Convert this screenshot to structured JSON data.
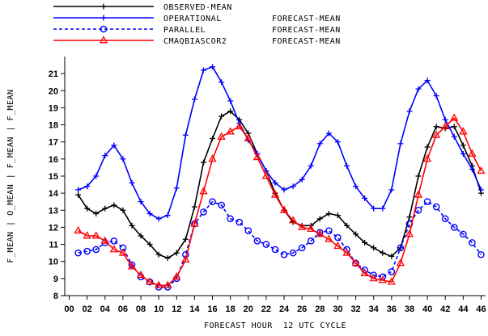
{
  "chart_data": {
    "type": "line",
    "xlabel": "FORECAST HOUR  12 UTC CYCLE",
    "ylabel": "F_MEAN | O_MEAN | F_MEAN | F_MEAN",
    "xlim": [
      -0.5,
      46.5
    ],
    "ylim": [
      8,
      22
    ],
    "grid": false,
    "legend_position": "top-left",
    "x_ticks": [
      "00",
      "02",
      "04",
      "06",
      "08",
      "10",
      "12",
      "14",
      "16",
      "18",
      "20",
      "22",
      "24",
      "26",
      "28",
      "30",
      "32",
      "34",
      "36",
      "38",
      "40",
      "42",
      "44",
      "46"
    ],
    "y_ticks": [
      "8",
      "9",
      "10",
      "11",
      "12",
      "13",
      "14",
      "15",
      "16",
      "17",
      "18",
      "19",
      "20",
      "21"
    ],
    "x": [
      1,
      2,
      3,
      4,
      5,
      6,
      7,
      8,
      9,
      10,
      11,
      12,
      13,
      14,
      15,
      16,
      17,
      18,
      19,
      20,
      21,
      22,
      23,
      24,
      25,
      26,
      27,
      28,
      29,
      30,
      31,
      32,
      33,
      34,
      35,
      36,
      37,
      38,
      39,
      40,
      41,
      42,
      43,
      44,
      45,
      46
    ],
    "series": [
      {
        "name": "OBSERVED-MEAN",
        "label_right": "",
        "color": "#000000",
        "dash": "solid",
        "marker": "plus",
        "values": [
          13.9,
          13.1,
          12.8,
          13.1,
          13.3,
          13.0,
          12.1,
          11.5,
          11.0,
          10.4,
          10.2,
          10.5,
          11.3,
          13.2,
          15.8,
          17.2,
          18.5,
          18.8,
          18.3,
          17.5,
          16.3,
          15.3,
          14.0,
          13.0,
          12.3,
          12.1,
          12.1,
          12.5,
          12.8,
          12.7,
          12.1,
          11.6,
          11.1,
          10.8,
          10.5,
          10.3,
          10.8,
          12.6,
          15.0,
          16.7,
          17.9,
          17.8,
          17.9,
          16.8,
          15.6,
          14.0
        ]
      },
      {
        "name": "OPERATIONAL",
        "label_right": "FORECAST-MEAN",
        "color": "#0000ff",
        "dash": "solid",
        "marker": "plus",
        "values": [
          14.2,
          14.4,
          15.0,
          16.2,
          16.8,
          16.0,
          14.6,
          13.5,
          12.8,
          12.5,
          12.7,
          14.3,
          17.4,
          19.5,
          21.2,
          21.4,
          20.5,
          19.4,
          18.1,
          17.1,
          16.3,
          15.3,
          14.6,
          14.2,
          14.4,
          14.8,
          15.6,
          16.9,
          17.5,
          17.0,
          15.6,
          14.4,
          13.7,
          13.1,
          13.1,
          14.2,
          16.9,
          18.8,
          20.1,
          20.6,
          19.7,
          18.3,
          17.3,
          16.3,
          15.4,
          14.2
        ]
      },
      {
        "name": "PARALLEL",
        "label_right": "FORECAST-MEAN",
        "color": "#0000ff",
        "dash": "dashed",
        "marker": "circle",
        "values": [
          10.5,
          10.6,
          10.7,
          11.1,
          11.2,
          10.8,
          9.8,
          9.1,
          8.8,
          8.5,
          8.5,
          9.0,
          10.4,
          12.2,
          12.9,
          13.5,
          13.3,
          12.5,
          12.3,
          11.8,
          11.2,
          11.0,
          10.7,
          10.4,
          10.5,
          10.8,
          11.2,
          11.7,
          11.8,
          11.4,
          10.7,
          9.9,
          9.5,
          9.2,
          9.1,
          9.4,
          10.8,
          12.2,
          13.0,
          13.5,
          13.2,
          12.5,
          12.0,
          11.6,
          11.1,
          10.4
        ]
      },
      {
        "name": "CMAQBIASCOR2",
        "label_right": "FORECAST-MEAN",
        "color": "#ff0000",
        "dash": "solid",
        "marker": "triangle",
        "values": [
          11.8,
          11.5,
          11.5,
          11.2,
          10.7,
          10.5,
          9.7,
          9.2,
          8.8,
          8.6,
          8.6,
          9.1,
          10.1,
          12.2,
          14.1,
          16.0,
          17.3,
          17.6,
          17.9,
          17.2,
          16.1,
          15.0,
          13.9,
          13.0,
          12.4,
          12.0,
          11.9,
          11.6,
          11.3,
          10.9,
          10.5,
          9.9,
          9.3,
          9.0,
          8.9,
          8.8,
          9.9,
          11.6,
          13.9,
          16.0,
          17.4,
          17.9,
          18.4,
          17.6,
          16.3,
          15.3
        ]
      }
    ]
  }
}
